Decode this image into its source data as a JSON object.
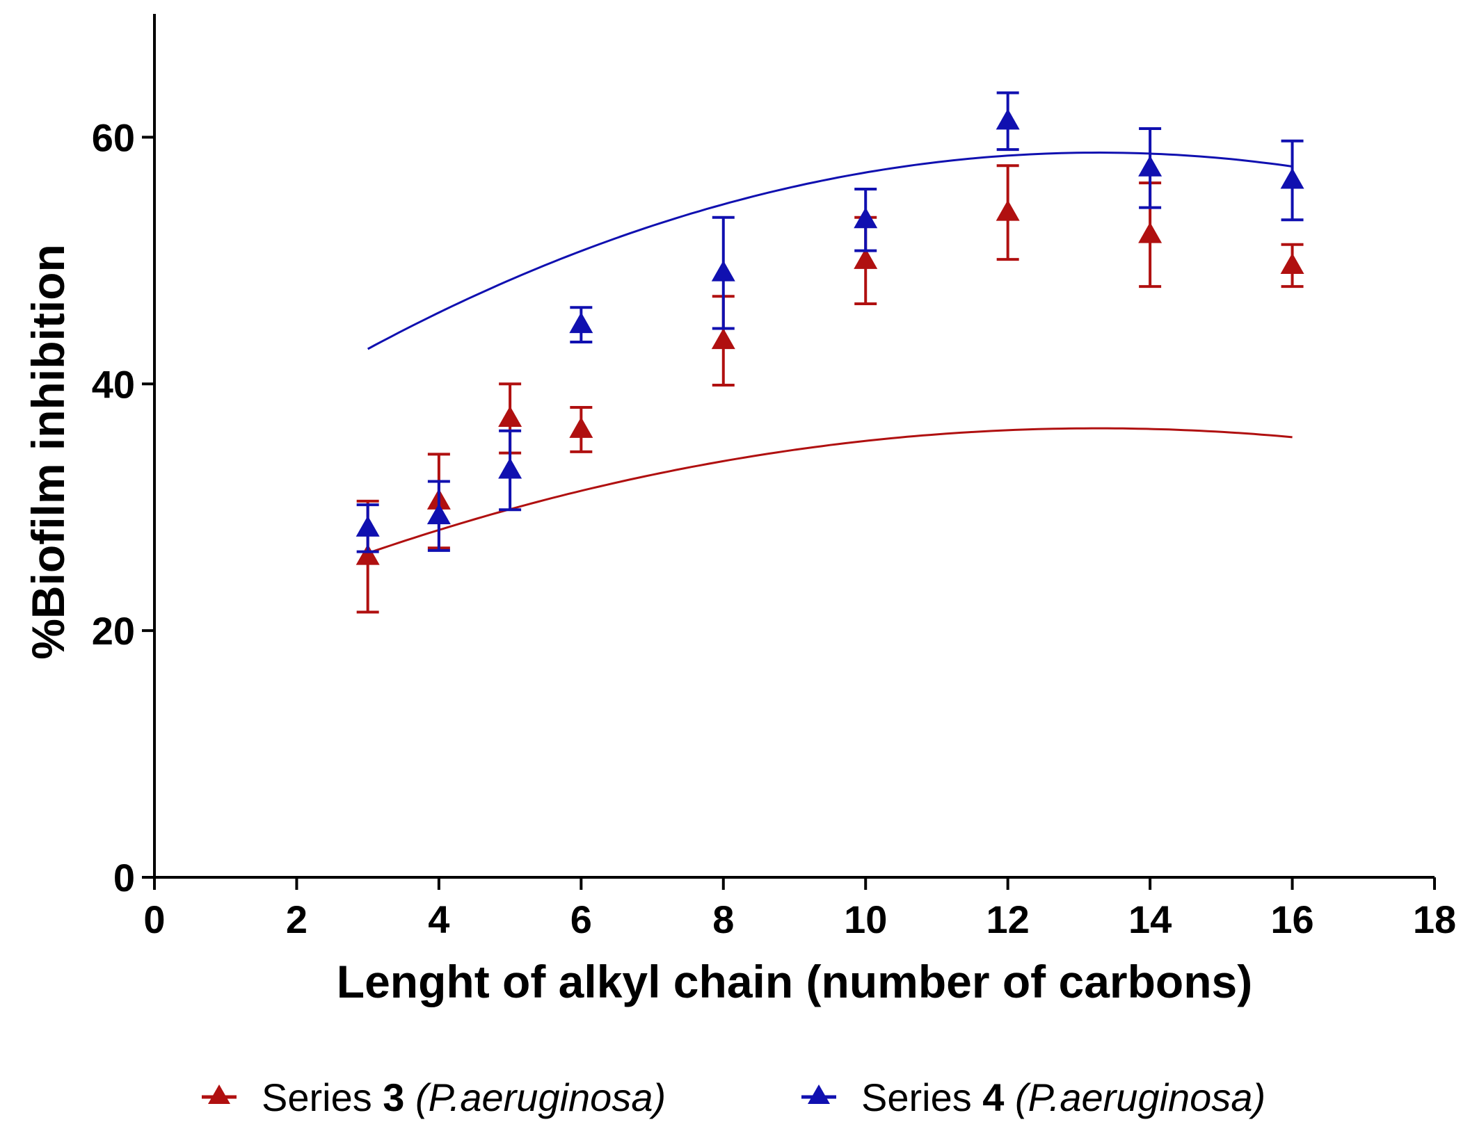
{
  "chart_data": {
    "type": "scatter",
    "title": "",
    "xlabel": "Lenght of alkyl chain (number of carbons)",
    "ylabel": "%Biofilm inhibition",
    "xlim": [
      0,
      18
    ],
    "ylim": [
      0,
      70
    ],
    "xticks": [
      0,
      2,
      4,
      6,
      8,
      10,
      12,
      14,
      16,
      18
    ],
    "yticks": [
      0,
      20,
      40,
      60
    ],
    "grid": false,
    "legend_position": "bottom",
    "series": [
      {
        "name": "Series 3 (P.aeruginosa)",
        "legend_prefix": "Series ",
        "legend_number": "3",
        "legend_species": "(P.aeruginosa)",
        "color": "#b01010",
        "marker": "triangle",
        "x": [
          3,
          4,
          5,
          6,
          8,
          10,
          12,
          14,
          16
        ],
        "y": [
          26.0,
          30.5,
          37.2,
          36.3,
          43.5,
          50.0,
          53.9,
          52.1,
          49.6
        ],
        "err": [
          4.5,
          3.8,
          2.8,
          1.8,
          3.6,
          3.5,
          3.8,
          4.2,
          1.7
        ],
        "fit": [
          -0.0961,
          2.549,
          19.5
        ]
      },
      {
        "name": "Series 4 (P.aeruginosa)",
        "legend_prefix": "Series ",
        "legend_number": "4",
        "legend_species": "(P.aeruginosa)",
        "color": "#1010b0",
        "marker": "triangle",
        "x": [
          3,
          4,
          5,
          6,
          8,
          10,
          12,
          14,
          16
        ],
        "y": [
          28.3,
          29.3,
          33.0,
          44.8,
          49.0,
          53.3,
          61.3,
          57.5,
          56.5
        ],
        "err": [
          1.9,
          2.8,
          3.2,
          1.4,
          4.5,
          2.5,
          2.3,
          3.2,
          3.2
        ],
        "fit": [
          -0.1509,
          4.005,
          32.18
        ]
      }
    ]
  }
}
